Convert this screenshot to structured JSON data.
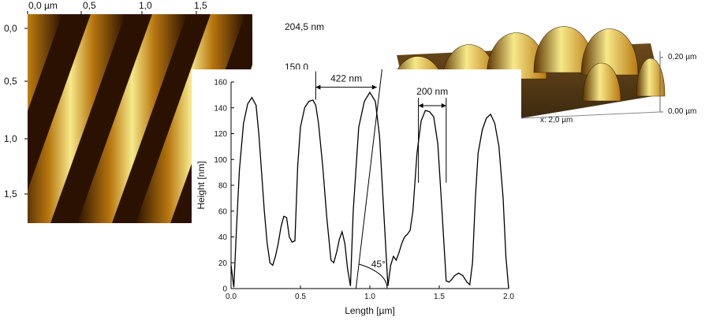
{
  "colors": {
    "afm_dark": "#2b1200",
    "afm_mid": "#b8770f",
    "afm_light": "#f6e98a",
    "background": "#ffffff",
    "line": "#000000"
  },
  "afm_image": {
    "x_tick_labels": [
      "0,0 µm",
      "0,5",
      "1,0",
      "1,5"
    ],
    "y_tick_labels": [
      "0,0",
      "0,5",
      "1,0",
      "1,5"
    ],
    "colorbar_labels": [
      "204,5 nm",
      "150,0"
    ]
  },
  "afm_3d": {
    "z_tick_labels": [
      "0,20 µm",
      "0,00 µm"
    ],
    "x_axis_label": "x: 2,0 µm"
  },
  "chart_data": {
    "type": "line",
    "title": "",
    "xlabel": "Length [µm]",
    "ylabel": "Height [nm]",
    "xlim": [
      0,
      2.0
    ],
    "ylim": [
      0,
      160
    ],
    "x_tick_labels": [
      "0.0",
      "0.5",
      "1.0",
      "1.5",
      "2.0"
    ],
    "y_tick_labels": [
      "0",
      "20",
      "40",
      "60",
      "80",
      "100",
      "120",
      "140",
      "160"
    ],
    "grid": false,
    "series": [
      {
        "x": [
          0.0,
          0.02,
          0.04,
          0.06,
          0.09,
          0.12,
          0.15,
          0.18,
          0.2,
          0.22,
          0.24,
          0.26,
          0.28,
          0.3,
          0.32,
          0.34,
          0.36,
          0.38,
          0.4,
          0.42,
          0.44,
          0.46,
          0.48,
          0.5,
          0.53,
          0.56,
          0.59,
          0.61,
          0.63,
          0.66,
          0.69,
          0.72,
          0.74,
          0.76,
          0.78,
          0.8,
          0.82,
          0.84,
          0.86,
          0.88,
          0.92,
          0.96,
          1.0,
          1.04,
          1.07,
          1.1,
          1.13,
          1.15,
          1.17,
          1.19,
          1.21,
          1.23,
          1.25,
          1.27,
          1.29,
          1.31,
          1.34,
          1.37,
          1.4,
          1.43,
          1.46,
          1.49,
          1.52,
          1.55,
          1.57,
          1.59,
          1.61,
          1.64,
          1.67,
          1.7,
          1.72,
          1.74,
          1.76,
          1.78,
          1.81,
          1.84,
          1.87,
          1.9,
          1.93,
          1.96,
          1.98,
          2.0
        ],
        "y": [
          18,
          1,
          48,
          92,
          128,
          143,
          148,
          142,
          120,
          90,
          60,
          35,
          20,
          18,
          25,
          35,
          48,
          56,
          55,
          40,
          36,
          37,
          95,
          125,
          140,
          145,
          146,
          142,
          128,
          95,
          55,
          22,
          20,
          28,
          38,
          44,
          35,
          15,
          2,
          60,
          125,
          145,
          152,
          145,
          118,
          60,
          2,
          18,
          25,
          22,
          28,
          35,
          40,
          42,
          45,
          60,
          105,
          130,
          138,
          137,
          133,
          112,
          60,
          6,
          5,
          7,
          10,
          12,
          10,
          5,
          3,
          20,
          70,
          105,
          123,
          132,
          135,
          128,
          110,
          70,
          25,
          0
        ]
      }
    ],
    "annotations": [
      {
        "text": "422 nm",
        "x1": 0.61,
        "x2": 1.05,
        "y": 145
      },
      {
        "text": "200 nm",
        "x1": 1.35,
        "x2": 1.55,
        "y": 138
      },
      {
        "text": "45°",
        "x": 1.01,
        "y": 19
      }
    ]
  }
}
